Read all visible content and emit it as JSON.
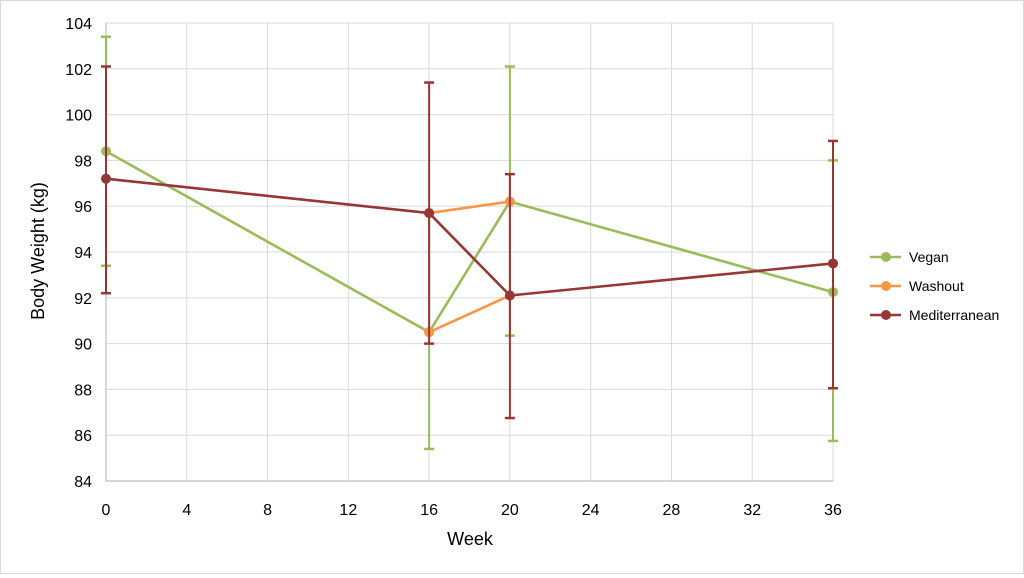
{
  "chart_data": {
    "type": "line",
    "title": "",
    "xlabel": "Week",
    "ylabel": "Body Weight (kg)",
    "xlim": [
      0,
      36
    ],
    "ylim": [
      84,
      104
    ],
    "x_ticks": [
      0,
      4,
      8,
      12,
      16,
      20,
      24,
      28,
      32,
      36
    ],
    "y_ticks": [
      84,
      86,
      88,
      90,
      92,
      94,
      96,
      98,
      100,
      102,
      104
    ],
    "grid": true,
    "legend_position": "right",
    "series": [
      {
        "name": "Vegan",
        "color": "#9bbb59",
        "points": [
          {
            "x": 0,
            "y": 98.4,
            "err_low": 93.4,
            "err_high": 103.4
          },
          {
            "x": 16,
            "y": 90.5,
            "err_low": 85.4,
            "err_high": 95.7
          },
          {
            "x": 20,
            "y": 96.2,
            "err_low": 90.35,
            "err_high": 102.1
          },
          {
            "x": 36,
            "y": 92.25,
            "err_low": 85.75,
            "err_high": 98.0
          }
        ]
      },
      {
        "name": "Washout",
        "color": "#f79646",
        "points": [
          {
            "x": 16,
            "y": 95.7
          },
          {
            "x": 20,
            "y": 96.2
          },
          {
            "x": 16,
            "y": 90.5
          },
          {
            "x": 20,
            "y": 92.1
          }
        ],
        "segments": [
          [
            0,
            1
          ],
          [
            2,
            3
          ]
        ]
      },
      {
        "name": "Mediterranean",
        "color": "#953735",
        "points": [
          {
            "x": 0,
            "y": 97.2,
            "err_low": 92.2,
            "err_high": 102.1
          },
          {
            "x": 16,
            "y": 95.7,
            "err_low": 90.0,
            "err_high": 101.4
          },
          {
            "x": 20,
            "y": 92.1,
            "err_low": 86.75,
            "err_high": 97.4
          },
          {
            "x": 36,
            "y": 93.5,
            "err_low": 88.05,
            "err_high": 98.85
          }
        ]
      }
    ]
  }
}
